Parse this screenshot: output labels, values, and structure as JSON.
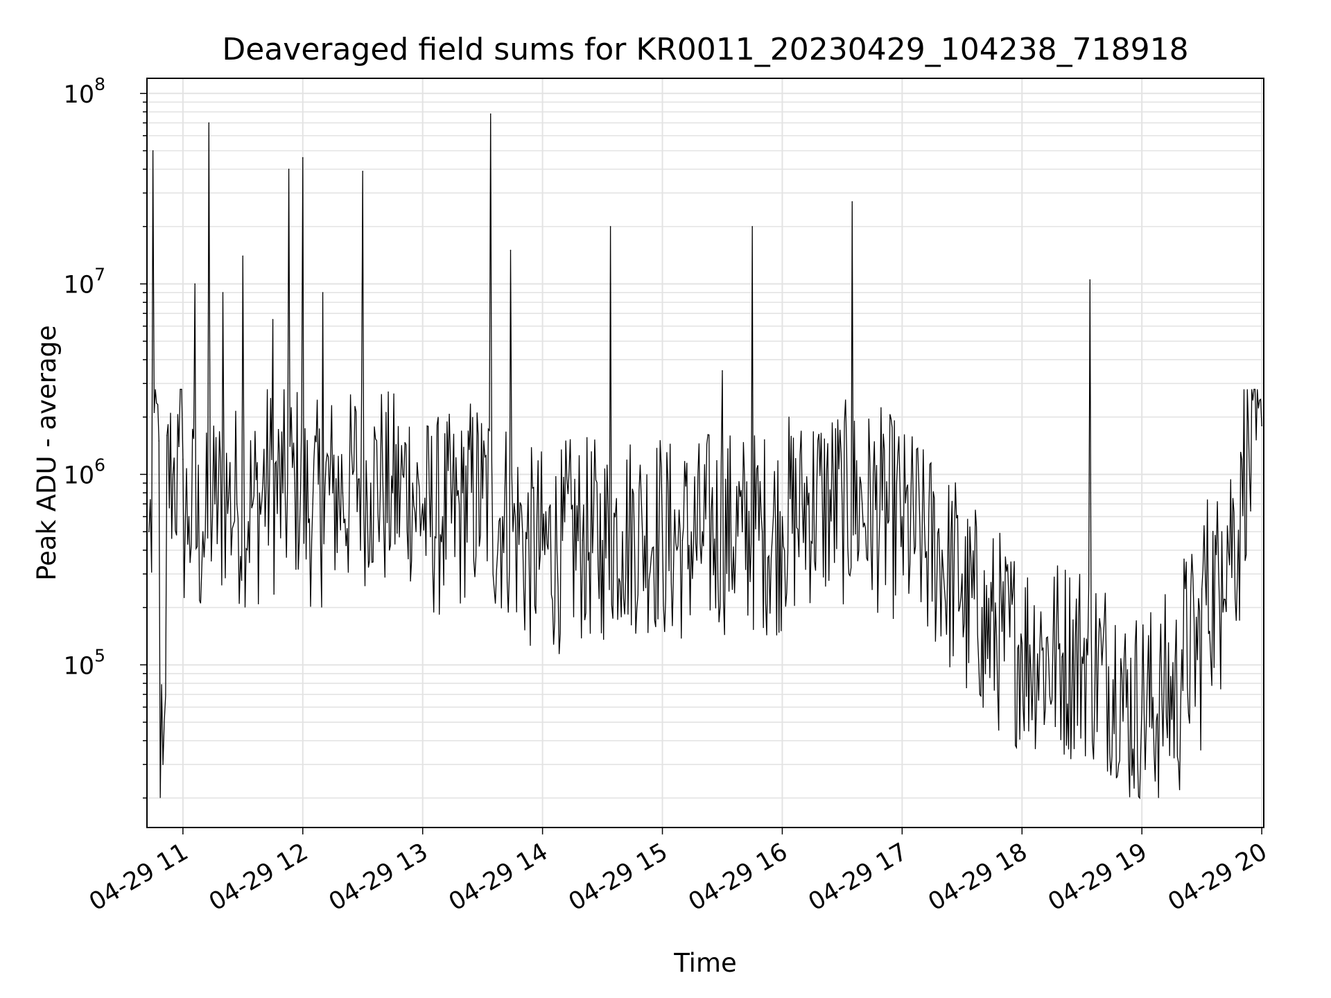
{
  "chart_data": {
    "type": "line",
    "title": "Deaveraged field sums for KR0011_20230429_104238_718918",
    "xlabel": "Time",
    "ylabel": "Peak ADU - average",
    "yscale": "log",
    "ylim": [
      14000,
      120000000
    ],
    "xlim": [
      "04-29 10:42",
      "04-29 20:01"
    ],
    "grid": true,
    "line_color": "#000000",
    "x_ticks": [
      "04-29 11",
      "04-29 12",
      "04-29 13",
      "04-29 14",
      "04-29 15",
      "04-29 16",
      "04-29 17",
      "04-29 18",
      "04-29 19",
      "04-29 20"
    ],
    "y_ticks": [
      {
        "base": "10",
        "exp": "5",
        "value": 100000
      },
      {
        "base": "10",
        "exp": "6",
        "value": 1000000
      },
      {
        "base": "10",
        "exp": "7",
        "value": 10000000
      },
      {
        "base": "10",
        "exp": "8",
        "value": 100000000
      }
    ],
    "series": [
      {
        "x": [
          "04-29 10:43",
          "04-29 10:45",
          "04-29 10:48",
          "04-29 10:50",
          "04-29 10:52",
          "04-29 10:55",
          "04-29 10:58",
          "04-29 11:00",
          "04-29 11:03",
          "04-29 11:06",
          "04-29 11:10",
          "04-29 11:13",
          "04-29 11:16",
          "04-29 11:20",
          "04-29 11:23",
          "04-29 11:27",
          "04-29 11:30",
          "04-29 11:35",
          "04-29 11:40",
          "04-29 11:45",
          "04-29 11:50",
          "04-29 11:53",
          "04-29 11:56",
          "04-29 12:00",
          "04-29 12:05",
          "04-29 12:10",
          "04-29 12:15",
          "04-29 12:20",
          "04-29 12:25",
          "04-29 12:30",
          "04-29 12:34",
          "04-29 12:40",
          "04-29 12:45",
          "04-29 12:50",
          "04-29 12:55",
          "04-29 13:00",
          "04-29 13:10",
          "04-29 13:20",
          "04-29 13:30",
          "04-29 13:34",
          "04-29 13:40",
          "04-29 13:44",
          "04-29 13:50",
          "04-29 14:00",
          "04-29 14:10",
          "04-29 14:20",
          "04-29 14:30",
          "04-29 14:34",
          "04-29 14:40",
          "04-29 14:50",
          "04-29 15:00",
          "04-29 15:10",
          "04-29 15:20",
          "04-29 15:30",
          "04-29 15:40",
          "04-29 15:45",
          "04-29 15:50",
          "04-29 16:00",
          "04-29 16:10",
          "04-29 16:20",
          "04-29 16:30",
          "04-29 16:35",
          "04-29 16:40",
          "04-29 16:50",
          "04-29 17:00",
          "04-29 17:10",
          "04-29 17:20",
          "04-29 17:30",
          "04-29 17:40",
          "04-29 17:50",
          "04-29 18:00",
          "04-29 18:10",
          "04-29 18:20",
          "04-29 18:30",
          "04-29 18:34",
          "04-29 18:40",
          "04-29 18:50",
          "04-29 19:00",
          "04-29 19:10",
          "04-29 19:20",
          "04-29 19:30",
          "04-29 19:40",
          "04-29 19:50",
          "04-29 20:00"
        ],
        "y": [
          500000,
          50000000,
          1500000,
          30000,
          1600000,
          1000000,
          1400000,
          1200000,
          600000,
          10000000,
          500000,
          70000000,
          700000,
          9000000,
          800000,
          700000,
          14000000,
          700000,
          900000,
          6500000,
          800000,
          40000000,
          900000,
          46000000,
          700000,
          9000000,
          800000,
          800000,
          1000000,
          39000000,
          900000,
          1000000,
          800000,
          1000000,
          900000,
          700000,
          600000,
          800000,
          750000,
          78000000,
          600000,
          15000000,
          500000,
          400000,
          450000,
          450000,
          450000,
          20000000,
          500000,
          500000,
          500000,
          450000,
          500000,
          3500000,
          500000,
          20000000,
          500000,
          600000,
          700000,
          800000,
          700000,
          27000000,
          700000,
          650000,
          600000,
          500000,
          400000,
          300000,
          200000,
          150000,
          130000,
          120000,
          110000,
          110000,
          10500000,
          100000,
          90000,
          60000,
          70000,
          120000,
          250000,
          500000,
          1200000,
          1800000
        ]
      }
    ]
  }
}
